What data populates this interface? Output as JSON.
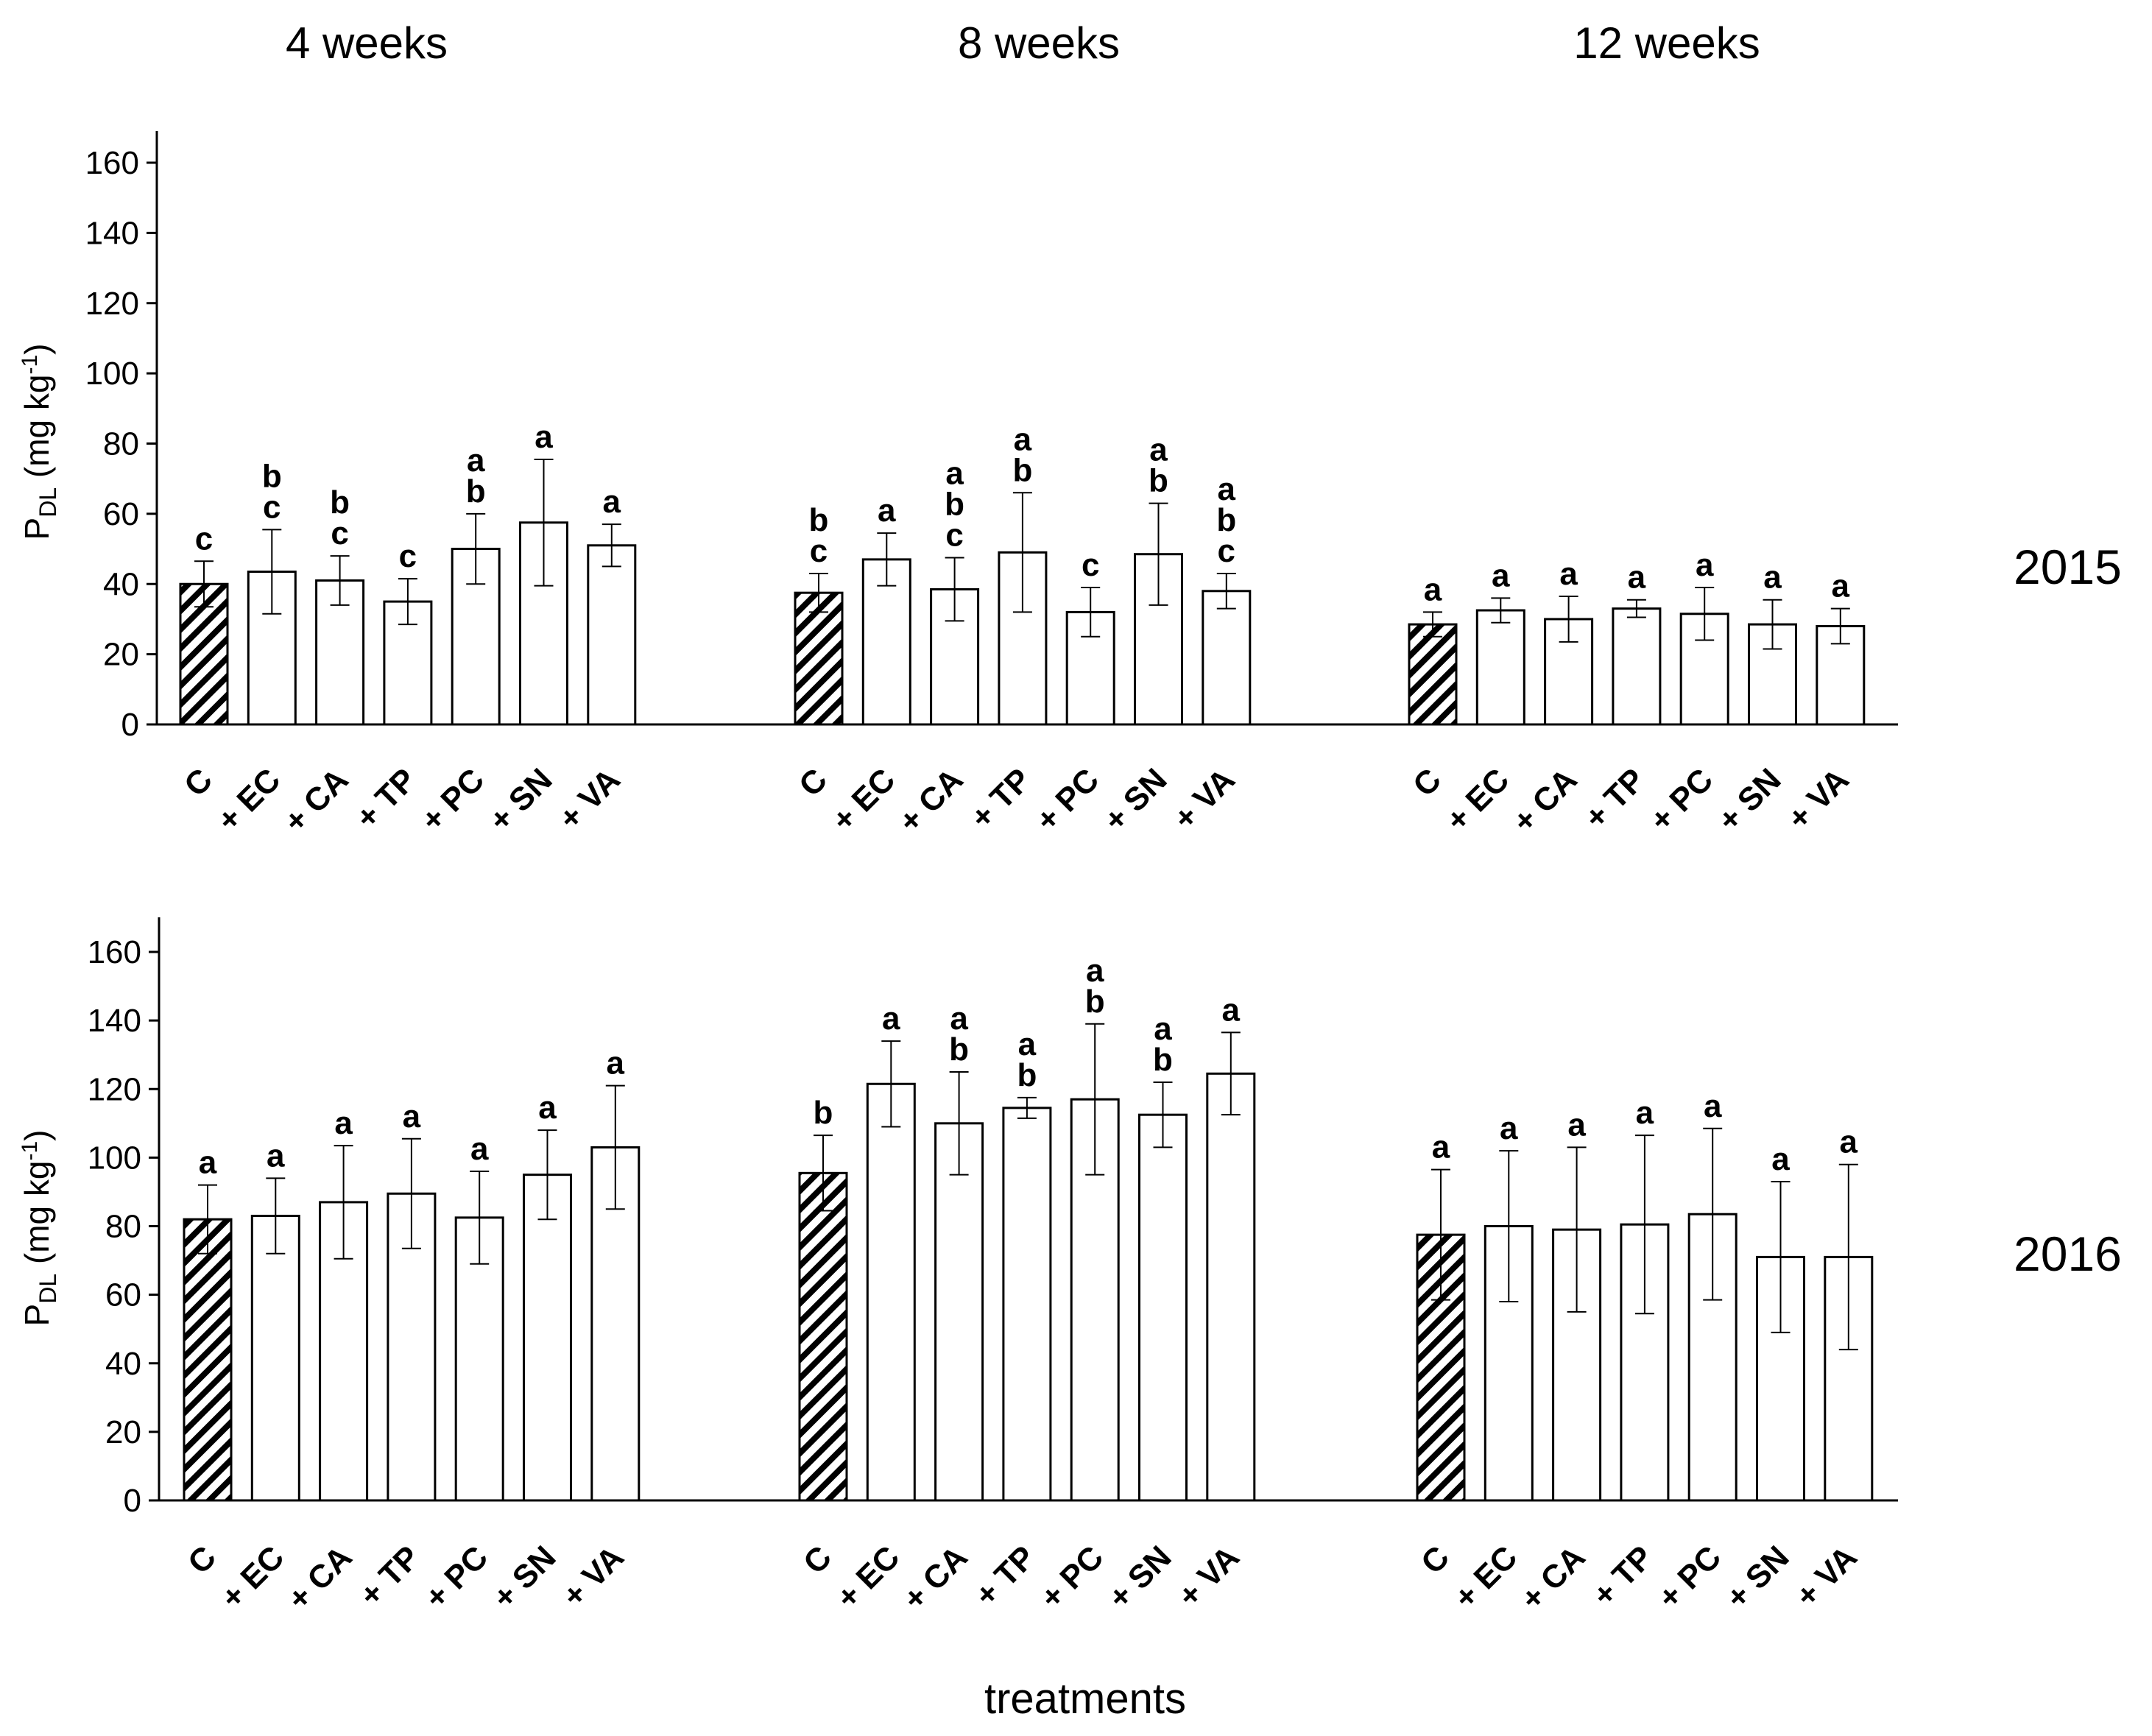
{
  "chart_data": {
    "type": "bar",
    "xlabel": "treatments",
    "ylim": [
      0,
      170
    ],
    "yticks": [
      0,
      20,
      40,
      60,
      80,
      100,
      120,
      140,
      160
    ],
    "time_points": [
      "4 weeks",
      "8 weeks",
      "12 weeks"
    ],
    "categories": [
      "C",
      "+ EC",
      "+ CA",
      "+ TP",
      "+ PC",
      "+ SN",
      "+ VA"
    ],
    "control_category": "C",
    "panels": [
      {
        "year": "2015",
        "ylabel": {
          "main": "P",
          "sub": "DL",
          "unit_before": " (mg kg",
          "sup": "-1",
          "unit_after": ")"
        },
        "groups": [
          {
            "time": "4 weeks",
            "values": [
              40,
              43.5,
              41,
              35,
              50,
              57.5,
              51
            ],
            "errors": [
              6.5,
              12,
              7,
              6.5,
              10,
              18,
              6
            ],
            "letters": [
              [
                "c"
              ],
              [
                "b",
                "c"
              ],
              [
                "b",
                "c"
              ],
              [
                "c"
              ],
              [
                "a",
                "b"
              ],
              [
                "a"
              ],
              [
                "a"
              ]
            ]
          },
          {
            "time": "8 weeks",
            "values": [
              37.5,
              47,
              38.5,
              49,
              32,
              48.5,
              38
            ],
            "errors": [
              5.5,
              7.5,
              9,
              17,
              7,
              14.5,
              5
            ],
            "letters": [
              [
                "b",
                "c"
              ],
              [
                "a"
              ],
              [
                "a",
                "b",
                "c"
              ],
              [
                "a",
                "b"
              ],
              [
                "c"
              ],
              [
                "a",
                "b"
              ],
              [
                "a",
                "b",
                "c"
              ]
            ]
          },
          {
            "time": "12 weeks",
            "values": [
              28.5,
              32.5,
              30,
              33,
              31.5,
              28.5,
              28
            ],
            "errors": [
              3.5,
              3.5,
              6.5,
              2.5,
              7.5,
              7,
              5
            ],
            "letters": [
              [
                "a"
              ],
              [
                "a"
              ],
              [
                "a"
              ],
              [
                "a"
              ],
              [
                "a"
              ],
              [
                "a"
              ],
              [
                "a"
              ]
            ]
          }
        ]
      },
      {
        "year": "2016",
        "ylabel": {
          "main": "P",
          "sub": "DL",
          "unit_before": " (mg kg",
          "sup": "-1",
          "unit_after": ")"
        },
        "groups": [
          {
            "time": "4 weeks",
            "values": [
              82,
              83,
              87,
              89.5,
              82.5,
              95,
              103
            ],
            "errors": [
              10,
              11,
              16.5,
              16,
              13.5,
              13,
              18
            ],
            "letters": [
              [
                "a"
              ],
              [
                "a"
              ],
              [
                "a"
              ],
              [
                "a"
              ],
              [
                "a"
              ],
              [
                "a"
              ],
              [
                "a"
              ]
            ]
          },
          {
            "time": "8 weeks",
            "values": [
              95.5,
              121.5,
              110,
              114.5,
              117,
              112.5,
              124.5
            ],
            "errors": [
              11,
              12.5,
              15,
              3,
              22,
              9.5,
              12
            ],
            "letters": [
              [
                "b"
              ],
              [
                "a"
              ],
              [
                "a",
                "b"
              ],
              [
                "a",
                "b"
              ],
              [
                "a",
                "b"
              ],
              [
                "a",
                "b"
              ],
              [
                "a"
              ]
            ]
          },
          {
            "time": "12 weeks",
            "values": [
              77.5,
              80,
              79,
              80.5,
              83.5,
              71,
              71
            ],
            "errors": [
              19,
              22,
              24,
              26,
              25,
              22,
              27
            ],
            "letters": [
              [
                "a"
              ],
              [
                "a"
              ],
              [
                "a"
              ],
              [
                "a"
              ],
              [
                "a"
              ],
              [
                "a"
              ],
              [
                "a"
              ]
            ]
          }
        ]
      }
    ]
  }
}
